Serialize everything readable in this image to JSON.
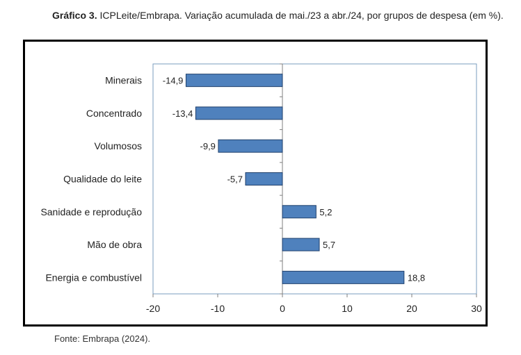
{
  "caption": {
    "prefix": "Gráfico 3.",
    "text": "ICPLeite/Embrapa. Variação acumulada de mai./23 a abr./24, por grupos de despesa (em %)."
  },
  "source": "Fonte: Embrapa (2024).",
  "chart_data": {
    "type": "bar",
    "orientation": "horizontal",
    "title": "",
    "xlabel": "",
    "ylabel": "",
    "categories": [
      "Minerais",
      "Concentrado",
      "Volumosos",
      "Qualidade do leite",
      "Sanidade e reprodução",
      "Mão de obra",
      "Energia e combustível"
    ],
    "values": [
      -14.9,
      -13.4,
      -9.9,
      -5.7,
      5.2,
      5.7,
      18.8
    ],
    "value_labels": [
      "-14,9",
      "-13,4",
      "-9,9",
      "-5,7",
      "5,2",
      "5,7",
      "18,8"
    ],
    "xlim": [
      -20,
      30
    ],
    "xticks": [
      -20,
      -10,
      0,
      10,
      20,
      30
    ],
    "grid": false,
    "legend": "none",
    "bar_color": "#4f81bd",
    "bar_edge_color": "#1f3f6b"
  }
}
